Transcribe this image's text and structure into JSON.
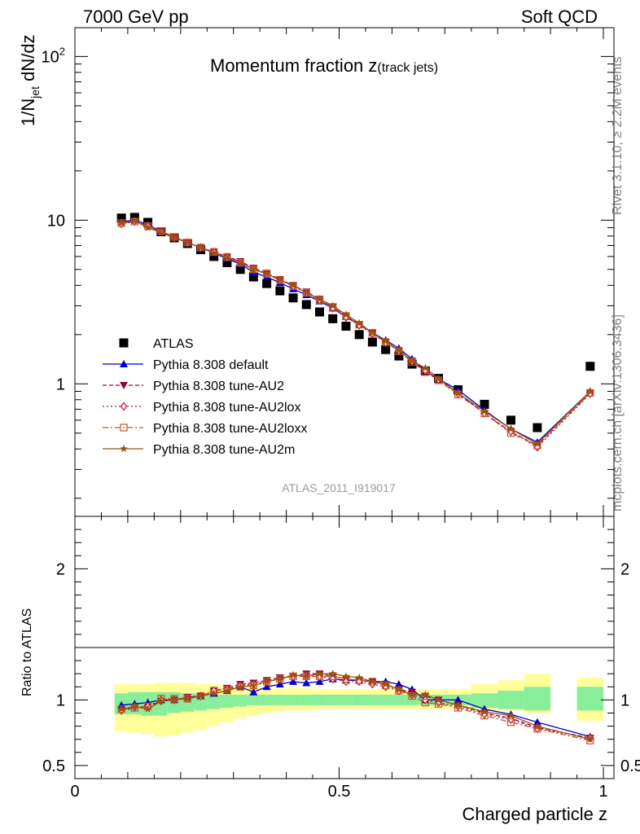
{
  "header": {
    "left": "7000 GeV pp",
    "right": "Soft QCD"
  },
  "side_labels": {
    "rivet": "Rivet 3.1.10, ≥ 2.2M events",
    "mcplots": "mcplots.cern.ch [arXiv:1306.3436]"
  },
  "main_title": {
    "main": "Momentum fraction z",
    "sub": "(track jets)"
  },
  "analysis_tag": "ATLAS_2011_I919017",
  "y_label": {
    "prefix": "1/N",
    "sub": "jet",
    "suffix": " dN/dz"
  },
  "ratio_y_label": "Ratio to ATLAS",
  "x_label": "Charged particle z",
  "colors": {
    "data": "#000000",
    "default": "#0000cc",
    "tune_AU2": "#990044",
    "tune_AU2lox": "#bb1144",
    "tune_AU2loxx": "#cc5522",
    "tune_AU2m": "#995511",
    "band_inner": "#88ee99",
    "band_outer": "#ffff99"
  },
  "chart_data": [
    {
      "type": "scatter",
      "panel": "main",
      "y_scale": "log",
      "xlim": [
        0,
        1.02
      ],
      "ylim": [
        0.155,
        150
      ],
      "x_ticks": [
        {
          "value": 0,
          "label": "0"
        },
        {
          "value": 0.5,
          "label": "0.5"
        },
        {
          "value": 1,
          "label": "1"
        }
      ],
      "y_ticks": [
        {
          "value": 1,
          "label": "1"
        },
        {
          "value": 10,
          "label": "10"
        },
        {
          "value": 100,
          "label": "10",
          "sup": "2"
        }
      ],
      "x": [
        0.088,
        0.113,
        0.138,
        0.163,
        0.188,
        0.213,
        0.238,
        0.263,
        0.288,
        0.313,
        0.338,
        0.363,
        0.388,
        0.413,
        0.438,
        0.463,
        0.488,
        0.513,
        0.538,
        0.563,
        0.588,
        0.613,
        0.638,
        0.663,
        0.688,
        0.725,
        0.775,
        0.825,
        0.875,
        0.975
      ],
      "series": [
        {
          "name": "ATLAS",
          "marker": "square",
          "values": [
            10.3,
            10.4,
            9.7,
            8.5,
            7.8,
            7.2,
            6.6,
            6.0,
            5.5,
            5.0,
            4.5,
            4.1,
            3.7,
            3.35,
            3.05,
            2.75,
            2.5,
            2.25,
            2.0,
            1.8,
            1.62,
            1.48,
            1.32,
            1.2,
            1.08,
            0.92,
            0.75,
            0.6,
            0.54,
            1.28
          ]
        },
        {
          "name": "Pythia 8.308 default",
          "marker": "triangle-up",
          "line": "solid",
          "values": [
            9.8,
            10.0,
            9.4,
            8.5,
            7.9,
            7.3,
            6.8,
            6.3,
            5.8,
            5.4,
            4.8,
            4.5,
            4.15,
            3.8,
            3.5,
            3.2,
            2.9,
            2.57,
            2.3,
            2.05,
            1.85,
            1.65,
            1.42,
            1.2,
            1.07,
            0.92,
            0.69,
            0.53,
            0.44,
            0.9
          ]
        },
        {
          "name": "Pythia 8.308 tune-AU2",
          "marker": "triangle-down",
          "line": "dashed",
          "values": [
            9.5,
            9.8,
            9.2,
            8.5,
            7.9,
            7.3,
            6.8,
            6.4,
            6.0,
            5.6,
            5.1,
            4.75,
            4.35,
            4.0,
            3.65,
            3.3,
            2.95,
            2.6,
            2.3,
            2.05,
            1.8,
            1.6,
            1.38,
            1.2,
            1.06,
            0.88,
            0.66,
            0.51,
            0.42,
            0.88
          ]
        },
        {
          "name": "Pythia 8.308 tune-AU2lox",
          "marker": "diamond-open",
          "line": "dotted",
          "values": [
            9.5,
            9.9,
            9.2,
            8.5,
            7.8,
            7.3,
            6.8,
            6.4,
            5.95,
            5.55,
            5.05,
            4.7,
            4.3,
            3.95,
            3.6,
            3.25,
            2.9,
            2.55,
            2.28,
            2.02,
            1.78,
            1.59,
            1.37,
            1.2,
            1.06,
            0.87,
            0.66,
            0.51,
            0.41,
            0.87
          ]
        },
        {
          "name": "Pythia 8.308 tune-AU2loxx",
          "marker": "square-open",
          "line": "dashdot",
          "values": [
            9.6,
            9.8,
            9.2,
            8.6,
            7.9,
            7.3,
            6.8,
            6.4,
            5.95,
            5.5,
            5.0,
            4.7,
            4.3,
            3.95,
            3.6,
            3.25,
            2.95,
            2.6,
            2.3,
            2.05,
            1.8,
            1.58,
            1.36,
            1.18,
            1.05,
            0.86,
            0.66,
            0.5,
            0.42,
            0.88
          ]
        },
        {
          "name": "Pythia 8.308 tune-AU2m",
          "marker": "star",
          "line": "solid",
          "values": [
            9.6,
            9.9,
            9.0,
            8.4,
            7.8,
            7.3,
            6.8,
            6.3,
            5.9,
            5.5,
            5.0,
            4.7,
            4.3,
            4.0,
            3.6,
            3.3,
            3.0,
            2.65,
            2.35,
            2.05,
            1.82,
            1.6,
            1.38,
            1.25,
            1.08,
            0.88,
            0.68,
            0.53,
            0.43,
            0.9
          ]
        }
      ]
    },
    {
      "type": "scatter",
      "panel": "ratio",
      "xlim": [
        0,
        1.02
      ],
      "ylim": [
        0.4,
        2.4
      ],
      "y_ticks": [
        {
          "value": 0.5,
          "label": "0.5"
        },
        {
          "value": 1,
          "label": "1"
        },
        {
          "value": 2,
          "label": "2"
        }
      ],
      "x": [
        0.088,
        0.113,
        0.138,
        0.163,
        0.188,
        0.213,
        0.238,
        0.263,
        0.288,
        0.313,
        0.338,
        0.363,
        0.388,
        0.413,
        0.438,
        0.463,
        0.488,
        0.513,
        0.538,
        0.563,
        0.588,
        0.613,
        0.638,
        0.663,
        0.688,
        0.725,
        0.775,
        0.825,
        0.875,
        0.975
      ],
      "bands": {
        "edges": [
          0.075,
          0.1,
          0.125,
          0.15,
          0.175,
          0.2,
          0.225,
          0.25,
          0.275,
          0.3,
          0.325,
          0.35,
          0.375,
          0.4,
          0.425,
          0.45,
          0.475,
          0.5,
          0.525,
          0.55,
          0.575,
          0.6,
          0.625,
          0.65,
          0.675,
          0.7,
          0.75,
          0.8,
          0.85,
          0.9,
          0.95,
          1.0
        ],
        "gap": [
          0.9,
          0.95
        ],
        "inner_lo": [
          0.89,
          0.89,
          0.88,
          0.88,
          0.9,
          0.91,
          0.92,
          0.93,
          0.94,
          0.95,
          0.96,
          0.96,
          0.96,
          0.96,
          0.96,
          0.96,
          0.96,
          0.96,
          0.96,
          0.96,
          0.96,
          0.96,
          0.96,
          0.96,
          0.96,
          0.96,
          0.94,
          0.93,
          0.92,
          0,
          0.92
        ],
        "inner_hi": [
          1.05,
          1.06,
          1.06,
          1.06,
          1.06,
          1.05,
          1.05,
          1.04,
          1.04,
          1.04,
          1.04,
          1.04,
          1.04,
          1.04,
          1.04,
          1.04,
          1.04,
          1.04,
          1.04,
          1.04,
          1.04,
          1.04,
          1.04,
          1.04,
          1.04,
          1.04,
          1.05,
          1.07,
          1.1,
          0,
          1.1
        ],
        "outer_lo": [
          0.76,
          0.75,
          0.74,
          0.72,
          0.73,
          0.75,
          0.77,
          0.8,
          0.83,
          0.86,
          0.88,
          0.9,
          0.91,
          0.92,
          0.92,
          0.93,
          0.93,
          0.93,
          0.93,
          0.93,
          0.93,
          0.93,
          0.93,
          0.93,
          0.93,
          0.93,
          0.92,
          0.92,
          0.9,
          0,
          0.84
        ],
        "outer_hi": [
          1.12,
          1.12,
          1.12,
          1.13,
          1.13,
          1.13,
          1.12,
          1.12,
          1.11,
          1.1,
          1.1,
          1.09,
          1.09,
          1.09,
          1.09,
          1.08,
          1.08,
          1.08,
          1.08,
          1.08,
          1.08,
          1.08,
          1.08,
          1.08,
          1.08,
          1.08,
          1.12,
          1.15,
          1.2,
          0,
          1.17
        ]
      },
      "series": [
        {
          "name": "Pythia 8.308 default",
          "values": [
            0.96,
            0.97,
            0.98,
            1.0,
            1.0,
            1.02,
            1.03,
            1.05,
            1.07,
            1.1,
            1.06,
            1.1,
            1.12,
            1.14,
            1.13,
            1.14,
            1.16,
            1.15,
            1.15,
            1.14,
            1.14,
            1.12,
            1.08,
            1.0,
            1.0,
            1.0,
            0.93,
            0.89,
            0.83,
            0.72
          ]
        },
        {
          "name": "Pythia 8.308 tune-AU2",
          "values": [
            0.92,
            0.94,
            0.95,
            0.99,
            1.0,
            1.02,
            1.03,
            1.07,
            1.09,
            1.12,
            1.13,
            1.15,
            1.17,
            1.18,
            1.2,
            1.2,
            1.18,
            1.16,
            1.15,
            1.14,
            1.12,
            1.08,
            1.06,
            1.03,
            1.0,
            0.96,
            0.9,
            0.86,
            0.79,
            0.71
          ]
        },
        {
          "name": "Pythia 8.308 tune-AU2lox",
          "values": [
            0.92,
            0.95,
            0.95,
            1.0,
            1.0,
            1.01,
            1.03,
            1.07,
            1.08,
            1.11,
            1.12,
            1.14,
            1.16,
            1.18,
            1.18,
            1.18,
            1.16,
            1.14,
            1.14,
            1.12,
            1.1,
            1.07,
            1.04,
            1.0,
            0.98,
            0.95,
            0.89,
            0.85,
            0.78,
            0.71
          ]
        },
        {
          "name": "Pythia 8.308 tune-AU2loxx",
          "values": [
            0.93,
            0.94,
            0.95,
            1.01,
            1.01,
            1.01,
            1.03,
            1.07,
            1.08,
            1.1,
            1.11,
            1.14,
            1.16,
            1.18,
            1.18,
            1.18,
            1.18,
            1.16,
            1.15,
            1.14,
            1.11,
            1.07,
            1.03,
            0.98,
            0.97,
            0.94,
            0.88,
            0.83,
            0.78,
            0.69
          ]
        },
        {
          "name": "Pythia 8.308 tune-AU2m",
          "values": [
            0.93,
            0.95,
            0.93,
            0.99,
            1.0,
            1.01,
            1.03,
            1.05,
            1.07,
            1.1,
            1.11,
            1.14,
            1.16,
            1.19,
            1.18,
            1.2,
            1.2,
            1.18,
            1.17,
            1.14,
            1.12,
            1.08,
            1.04,
            1.04,
            1.0,
            0.96,
            0.91,
            0.88,
            0.8,
            0.7
          ]
        }
      ]
    }
  ]
}
